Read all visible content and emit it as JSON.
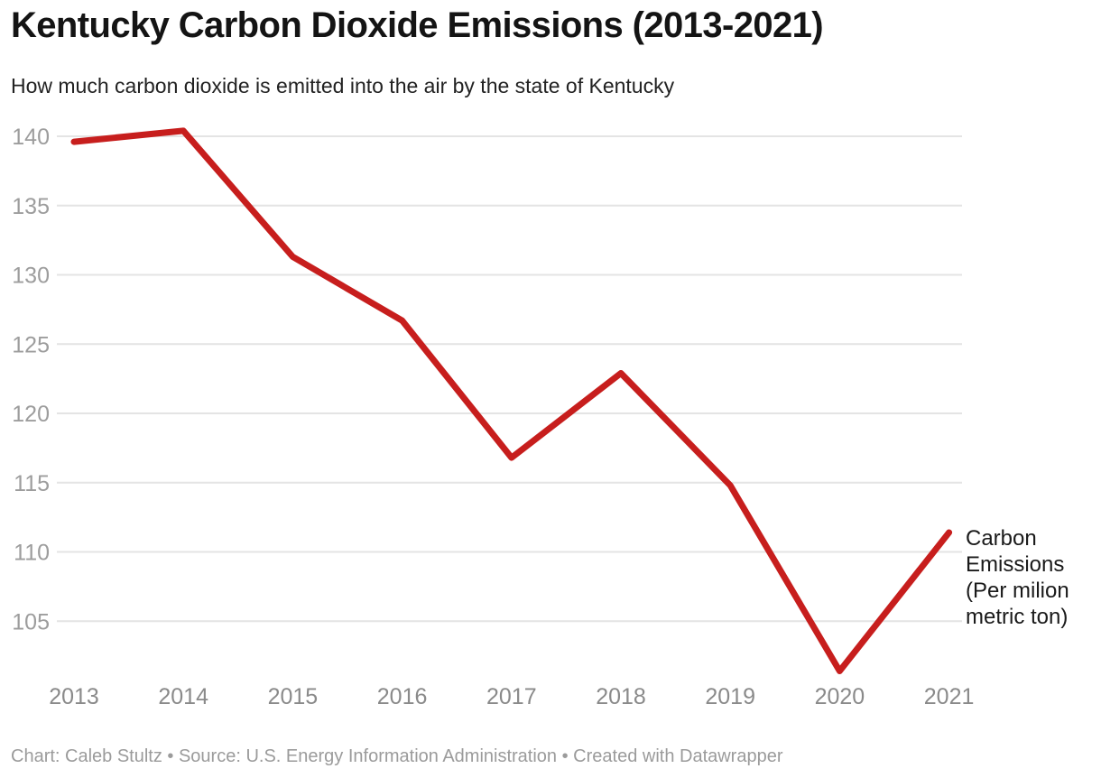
{
  "header": {
    "title": "Kentucky Carbon Dioxide Emissions (2013-2021)",
    "subtitle": "How much carbon dioxide is emitted into the air by the state of Kentucky"
  },
  "chart_data": {
    "type": "line",
    "title": "Kentucky Carbon Dioxide Emissions (2013-2021)",
    "subtitle": "How much carbon dioxide is emitted into the air by the state of Kentucky",
    "x": [
      "2013",
      "2014",
      "2015",
      "2016",
      "2017",
      "2018",
      "2019",
      "2020",
      "2021"
    ],
    "series": [
      {
        "name": "Carbon Emissions (Per milion metric ton)",
        "values": [
          139.6,
          140.4,
          131.3,
          126.7,
          116.8,
          122.9,
          114.8,
          101.4,
          111.4
        ]
      }
    ],
    "yticks": [
      140,
      135,
      130,
      125,
      120,
      115,
      110,
      105
    ],
    "ylim": [
      100.6,
      141
    ],
    "xlabel": "",
    "ylabel": "",
    "grid": "horizontal",
    "legend_position": "right-of-line-end",
    "series_label": "Carbon Emissions (Per milion metric ton)"
  },
  "footer": {
    "text": "Chart: Caleb Stultz • Source: U.S. Energy Information Administration • Created with Datawrapper"
  },
  "colors": {
    "line": "#c71e1d",
    "grid": "#e4e4e4",
    "ytick": "#9d9d9d",
    "xtick": "#8a8a8a",
    "title": "#141414",
    "subtitle": "#222222",
    "annotation": "#1a1a1a",
    "footer": "#9b9b9b"
  }
}
